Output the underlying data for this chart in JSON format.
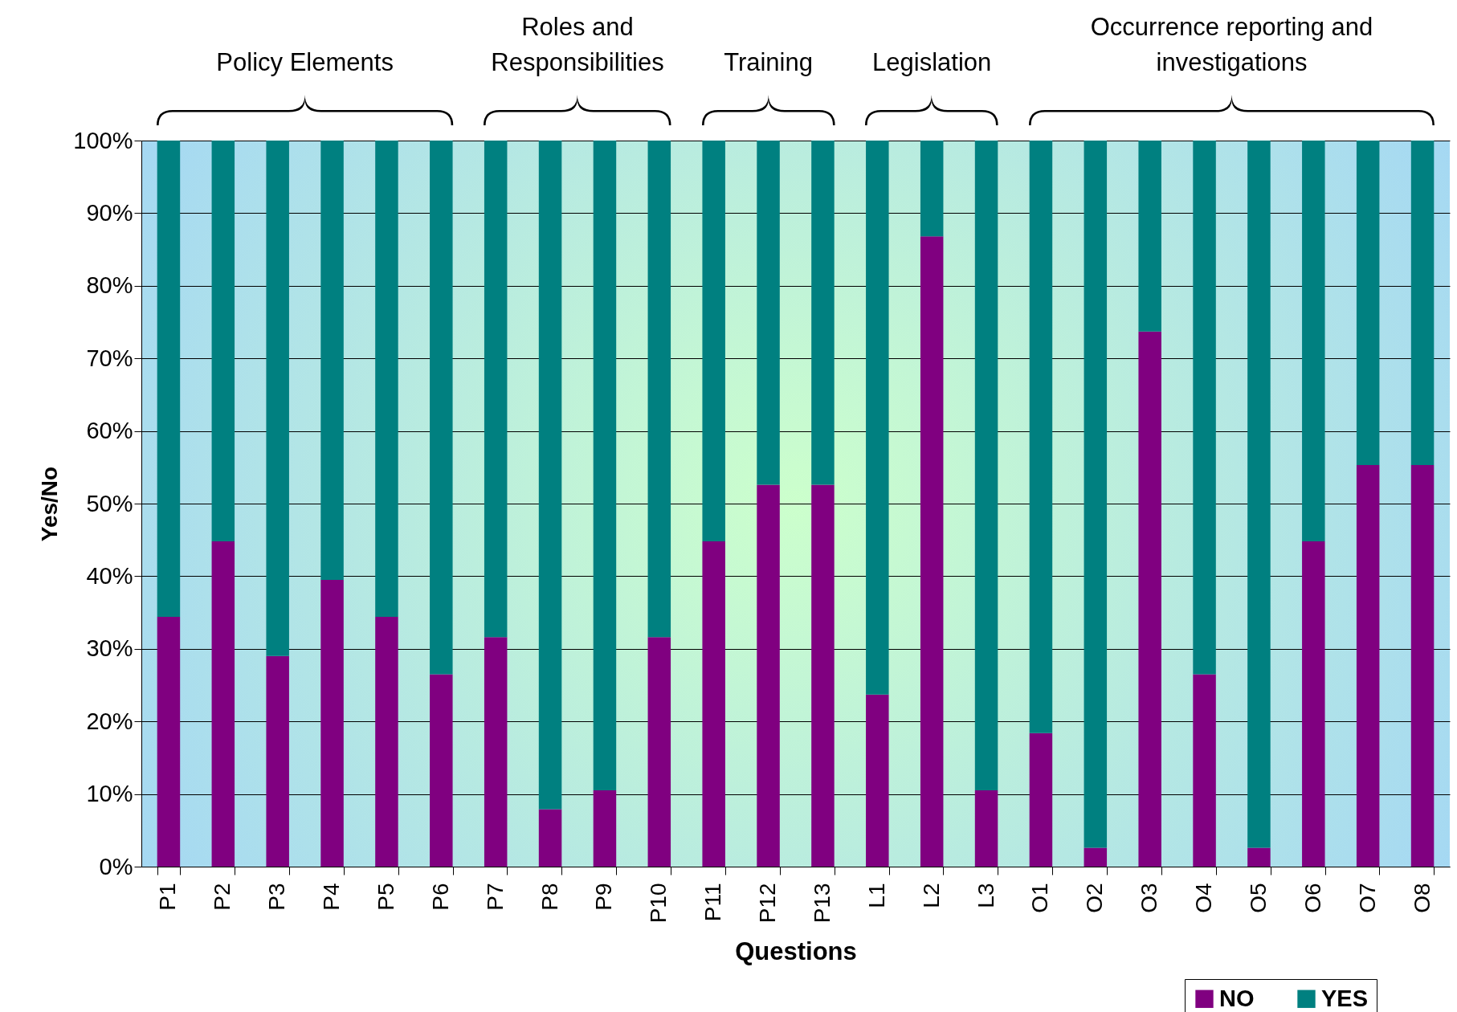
{
  "chart_data": {
    "type": "bar",
    "stacked": true,
    "xlabel": "Questions",
    "ylabel": "Yes/No",
    "categories": [
      "P1",
      "P2",
      "P3",
      "P4",
      "P5",
      "P6",
      "P7",
      "P8",
      "P9",
      "P10",
      "P11",
      "P12",
      "P13",
      "L1",
      "L2",
      "L3",
      "O1",
      "O2",
      "O3",
      "O4",
      "O5",
      "O6",
      "O7",
      "O8"
    ],
    "series": [
      {
        "name": "NO",
        "color": "#800080",
        "values": [
          34.4,
          44.8,
          29,
          39.5,
          34.4,
          26.5,
          31.6,
          7.9,
          10.5,
          31.6,
          44.8,
          52.6,
          52.6,
          23.7,
          86.8,
          10.5,
          18.4,
          2.6,
          73.7,
          26.5,
          2.6,
          44.8,
          55.3,
          55.3
        ]
      },
      {
        "name": "YES",
        "color": "#008080",
        "values": [
          65.6,
          55.2,
          71,
          60.5,
          65.6,
          73.5,
          68.4,
          92.1,
          89.5,
          68.4,
          55.2,
          47.4,
          47.4,
          76.3,
          13.2,
          89.5,
          81.6,
          97.4,
          26.3,
          73.5,
          97.4,
          55.2,
          44.7,
          44.7
        ]
      }
    ],
    "ylim": [
      0,
      100
    ],
    "yticks": [
      {
        "value": 0,
        "label": "0%"
      },
      {
        "value": 10,
        "label": "10%"
      },
      {
        "value": 20,
        "label": "20%"
      },
      {
        "value": 30,
        "label": "30%"
      },
      {
        "value": 40,
        "label": "40%"
      },
      {
        "value": 50,
        "label": "50%"
      },
      {
        "value": 60,
        "label": "60%"
      },
      {
        "value": 70,
        "label": "70%"
      },
      {
        "value": 80,
        "label": "80%"
      },
      {
        "value": 90,
        "label": "90%"
      },
      {
        "value": 100,
        "label": "100%"
      }
    ],
    "grid": "y",
    "legend": "bottom right",
    "annotations": [
      "Policy Elements",
      "Roles and Responsibilities",
      "Training",
      "Legislation",
      "Occurrence reporting and investigations"
    ]
  }
}
